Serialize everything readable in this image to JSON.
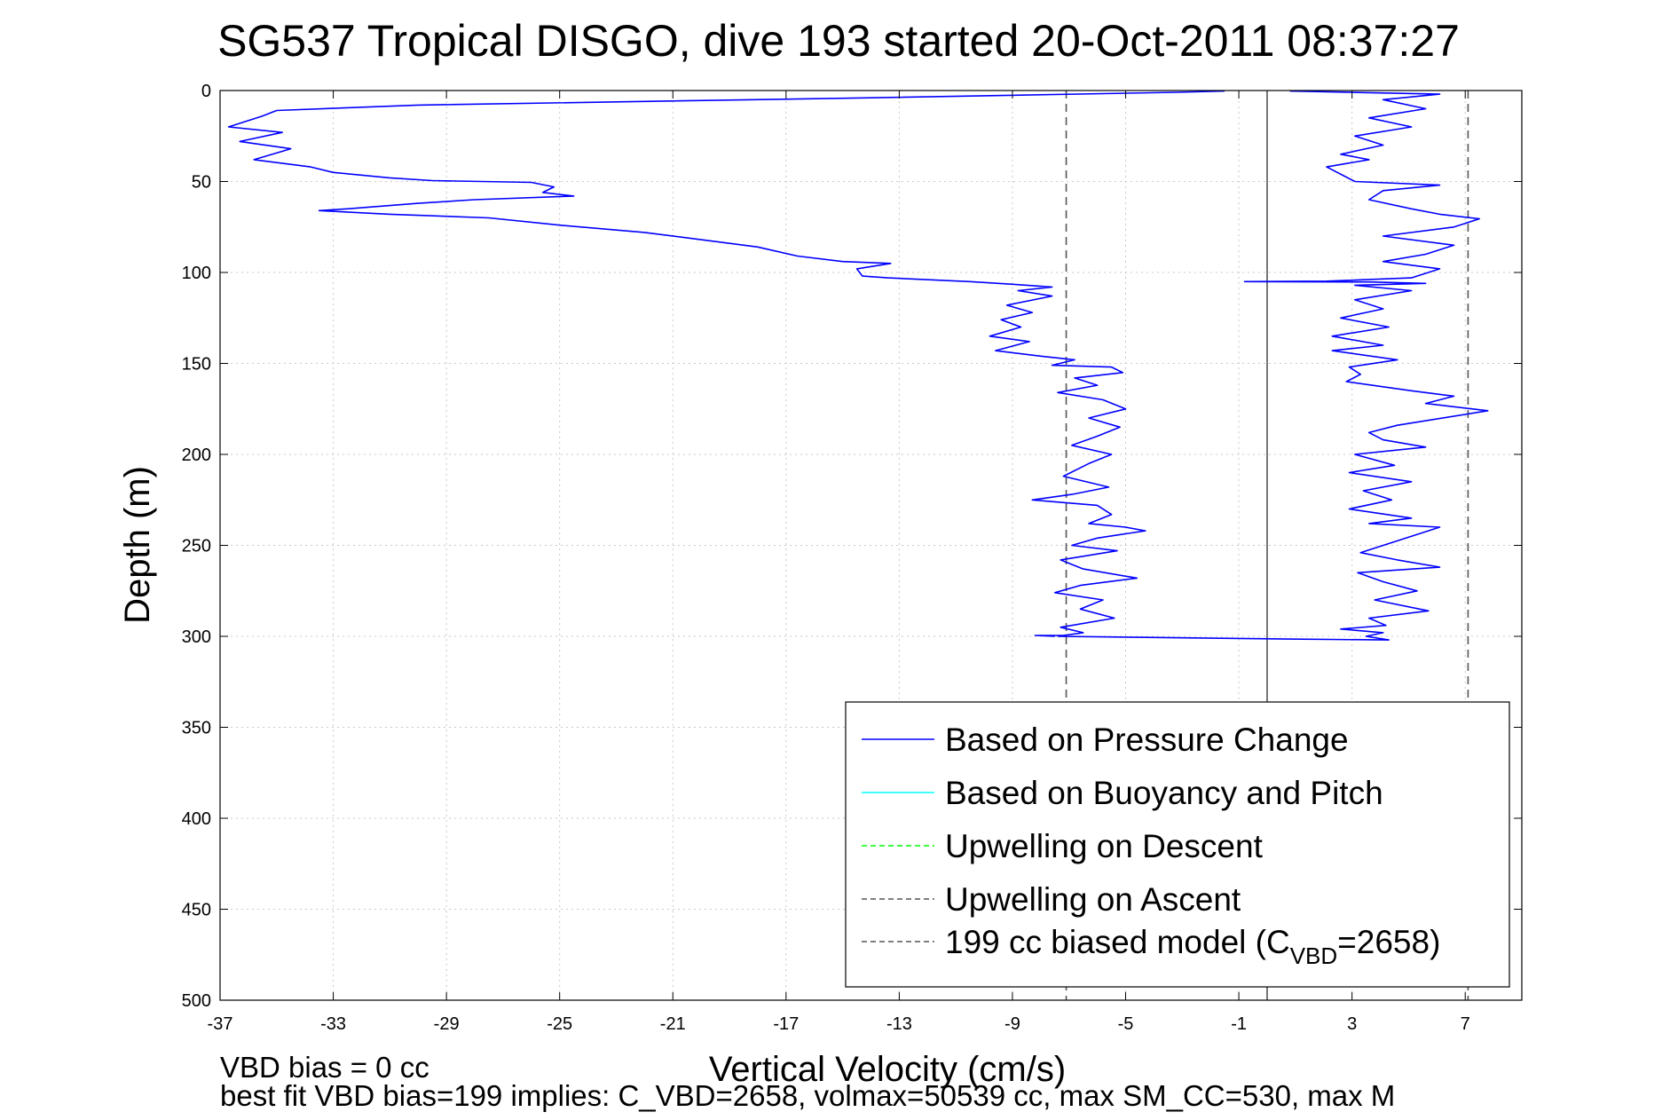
{
  "chart_data": {
    "type": "line",
    "title": "SG537 Tropical DISGO, dive 193 started 20-Oct-2011 08:37:27",
    "xlabel": "Vertical Velocity (cm/s)",
    "ylabel": "Depth (m)",
    "xlim": [
      -37,
      9
    ],
    "ylim": [
      0,
      500
    ],
    "y_reversed": true,
    "grid": true,
    "x_ticks": [
      -37,
      -33,
      -29,
      -25,
      -21,
      -17,
      -13,
      -9,
      -5,
      -1,
      3,
      7
    ],
    "y_ticks": [
      0,
      50,
      100,
      150,
      200,
      250,
      300,
      350,
      400,
      450,
      500
    ],
    "legend_position": "bottom-right",
    "legend": [
      {
        "label": "Based on Pressure Change",
        "color": "#0000ff",
        "style": "solid"
      },
      {
        "label": "Based on Buoyancy and Pitch",
        "color": "#00ffff",
        "style": "solid"
      },
      {
        "label": "Upwelling on Descent",
        "color": "#00ff00",
        "style": "dashed"
      },
      {
        "label": "Upwelling on Ascent",
        "color": "#555555",
        "style": "dashed"
      },
      {
        "label_main": "199 cc biased model (C",
        "label_sub": "VBD",
        "label_tail": "=2658)",
        "color": "#555555",
        "style": "dashed"
      }
    ],
    "series": [
      {
        "name": "Based on Pressure Change",
        "color": "#0000ff",
        "segments": [
          {
            "label": "descent",
            "points": [
              [
                -1.5,
                0.3
              ],
              [
                -3.2,
                1
              ],
              [
                -14,
                4
              ],
              [
                -30,
                8
              ],
              [
                -35,
                11
              ],
              [
                -35.5,
                14
              ],
              [
                -36.7,
                20
              ],
              [
                -34.8,
                23
              ],
              [
                -36.3,
                28
              ],
              [
                -34.5,
                32
              ],
              [
                -35.8,
                38
              ],
              [
                -33.8,
                42
              ],
              [
                -33,
                45
              ],
              [
                -31,
                48
              ],
              [
                -29.5,
                49.5
              ],
              [
                -26,
                50.5
              ],
              [
                -25.2,
                53
              ],
              [
                -25.6,
                56
              ],
              [
                -24.5,
                58
              ],
              [
                -28,
                60
              ],
              [
                -30,
                62
              ],
              [
                -32.5,
                65
              ],
              [
                -33.5,
                66
              ],
              [
                -31,
                68
              ],
              [
                -27.5,
                70
              ],
              [
                -25,
                74
              ],
              [
                -22,
                78
              ],
              [
                -20,
                82
              ],
              [
                -18,
                86
              ],
              [
                -16.6,
                91
              ],
              [
                -15,
                94
              ],
              [
                -13.3,
                95
              ],
              [
                -14.5,
                98
              ],
              [
                -14.3,
                102
              ],
              [
                -13.4,
                103
              ],
              [
                -10.5,
                105
              ],
              [
                -9,
                106.5
              ],
              [
                -7.6,
                108
              ],
              [
                -8.8,
                110
              ],
              [
                -7.6,
                113
              ],
              [
                -9.2,
                118
              ],
              [
                -8.3,
                122
              ],
              [
                -9.4,
                126
              ],
              [
                -8.7,
                130
              ],
              [
                -9.8,
                135
              ],
              [
                -8.4,
                138
              ],
              [
                -9.6,
                143
              ],
              [
                -8,
                146
              ],
              [
                -6.8,
                148
              ],
              [
                -7.6,
                151
              ],
              [
                -5.5,
                152
              ],
              [
                -5.1,
                155
              ],
              [
                -6.8,
                158
              ],
              [
                -6,
                162
              ],
              [
                -7.4,
                166
              ],
              [
                -5.8,
                170
              ],
              [
                -5,
                175
              ],
              [
                -6.3,
                180
              ],
              [
                -5.2,
                185
              ],
              [
                -6,
                190
              ],
              [
                -6.9,
                195
              ],
              [
                -5.5,
                200
              ],
              [
                -6.3,
                205
              ],
              [
                -7.2,
                212
              ],
              [
                -5.6,
                218
              ],
              [
                -6.9,
                222
              ],
              [
                -8.3,
                225
              ],
              [
                -6,
                228
              ],
              [
                -5.5,
                233
              ],
              [
                -6.3,
                238
              ],
              [
                -5,
                240
              ],
              [
                -4.3,
                242
              ],
              [
                -6,
                246
              ],
              [
                -6.9,
                250
              ],
              [
                -5.3,
                253
              ],
              [
                -7.3,
                258
              ],
              [
                -6.5,
                263
              ],
              [
                -4.6,
                268
              ],
              [
                -6.6,
                272
              ],
              [
                -7.5,
                276
              ],
              [
                -5.8,
                280
              ],
              [
                -6.6,
                285
              ],
              [
                -5.4,
                290
              ],
              [
                -7.3,
                295
              ],
              [
                -6.5,
                298
              ],
              [
                -7.2,
                299.5
              ],
              [
                -8.2,
                299.5
              ],
              [
                -7.5,
                300
              ]
            ]
          },
          {
            "label": "ascent",
            "points": [
              [
                -7.4,
                300
              ],
              [
                0.8,
                301.5
              ],
              [
                4.3,
                302
              ],
              [
                3.5,
                300
              ],
              [
                4.1,
                298
              ],
              [
                2.6,
                296
              ],
              [
                4.2,
                294
              ],
              [
                3.6,
                290
              ],
              [
                5.7,
                286
              ],
              [
                3.8,
                280
              ],
              [
                5.3,
                275
              ],
              [
                4.1,
                270
              ],
              [
                3.2,
                265
              ],
              [
                6.1,
                262
              ],
              [
                4.6,
                258
              ],
              [
                3.3,
                254
              ],
              [
                6.1,
                240
              ],
              [
                3.6,
                238
              ],
              [
                5.1,
                235
              ],
              [
                2.9,
                230
              ],
              [
                4.4,
                225
              ],
              [
                3.4,
                220
              ],
              [
                5.1,
                215
              ],
              [
                2.9,
                210
              ],
              [
                4.5,
                206
              ],
              [
                3.1,
                200
              ],
              [
                5.6,
                196
              ],
              [
                4.1,
                192
              ],
              [
                3.6,
                188
              ],
              [
                4.6,
                184
              ],
              [
                7.8,
                176
              ],
              [
                5.6,
                172
              ],
              [
                6.6,
                168
              ],
              [
                5.1,
                165
              ],
              [
                2.8,
                160
              ],
              [
                3.3,
                156
              ],
              [
                2.9,
                152
              ],
              [
                4.6,
                148
              ],
              [
                2.3,
                143
              ],
              [
                4.1,
                140
              ],
              [
                2.3,
                135
              ],
              [
                4.3,
                130
              ],
              [
                2.6,
                125
              ],
              [
                4.1,
                120
              ],
              [
                3.1,
                115
              ],
              [
                5.1,
                110
              ],
              [
                3.1,
                107
              ],
              [
                5.6,
                106
              ],
              [
                3.6,
                105.2
              ],
              [
                -0.8,
                105
              ],
              [
                2.1,
                104.8
              ],
              [
                5.1,
                103
              ],
              [
                6.1,
                98
              ],
              [
                4.1,
                94
              ],
              [
                5.6,
                90
              ],
              [
                6.6,
                85
              ],
              [
                4.1,
                80
              ],
              [
                6.6,
                75
              ],
              [
                7.5,
                70.5
              ],
              [
                6.1,
                68
              ],
              [
                5.1,
                65
              ],
              [
                3.6,
                60
              ],
              [
                4.1,
                55
              ],
              [
                6.1,
                52
              ],
              [
                3.1,
                50
              ],
              [
                2.1,
                42
              ],
              [
                3.6,
                38
              ],
              [
                2.6,
                35
              ],
              [
                4.1,
                30
              ],
              [
                3.1,
                25
              ],
              [
                5.1,
                20
              ],
              [
                3.6,
                15
              ],
              [
                5.6,
                10
              ],
              [
                4.1,
                5
              ],
              [
                6.1,
                2
              ],
              [
                0.8,
                0.3
              ]
            ]
          }
        ]
      }
    ],
    "reference_lines": [
      {
        "x": 0,
        "style": "solid",
        "color": "#555555"
      },
      {
        "x": -7.1,
        "style": "dashed",
        "color": "#555555"
      },
      {
        "x": 7.1,
        "style": "dashed",
        "color": "#555555"
      }
    ],
    "footer": {
      "line1": "VBD bias = 0 cc",
      "line2": "best fit VBD bias=199 implies: C_VBD=2658, volmax=50539 cc, max SM_CC=530, max M"
    }
  }
}
